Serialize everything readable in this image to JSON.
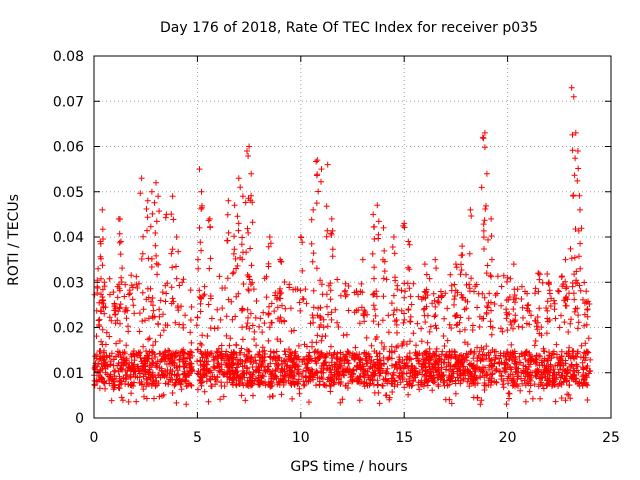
{
  "chart_data": {
    "type": "scatter",
    "title": "Day 176 of 2018, Rate Of TEC Index for receiver p035",
    "xlabel": "GPS time / hours",
    "ylabel": "ROTI / TECUs",
    "xlim": [
      0,
      25
    ],
    "ylim": [
      0,
      0.08
    ],
    "xticks": [
      0,
      5,
      10,
      15,
      20,
      25
    ],
    "xtick_labels": [
      "0",
      "5",
      "10",
      "15",
      "20",
      "25"
    ],
    "yticks": [
      0,
      0.01,
      0.02,
      0.03,
      0.04,
      0.05,
      0.06,
      0.07,
      0.08
    ],
    "ytick_labels": [
      "0",
      "0.01",
      "0.02",
      "0.03",
      "0.04",
      "0.05",
      "0.06",
      "0.07",
      "0.08"
    ],
    "grid": true,
    "marker": "+",
    "marker_color": "#ff0000",
    "series": [
      {
        "name": "ROTI",
        "description_x_range": [
          0,
          24
        ],
        "points": [
          [
            0.2,
            0.033
          ],
          [
            0.3,
            0.039
          ],
          [
            0.4,
            0.046
          ],
          [
            0.5,
            0.03
          ],
          [
            1.0,
            0.025
          ],
          [
            1.2,
            0.044
          ],
          [
            1.3,
            0.039
          ],
          [
            2.3,
            0.053
          ],
          [
            2.6,
            0.048
          ],
          [
            2.8,
            0.05
          ],
          [
            3.0,
            0.052
          ],
          [
            3.1,
            0.049
          ],
          [
            3.5,
            0.045
          ],
          [
            3.8,
            0.049
          ],
          [
            4.0,
            0.04
          ],
          [
            5.1,
            0.055
          ],
          [
            5.2,
            0.05
          ],
          [
            5.6,
            0.044
          ],
          [
            6.5,
            0.048
          ],
          [
            6.8,
            0.047
          ],
          [
            7.0,
            0.053
          ],
          [
            7.2,
            0.049
          ],
          [
            7.4,
            0.059
          ],
          [
            7.5,
            0.06
          ],
          [
            7.6,
            0.054
          ],
          [
            8.5,
            0.04
          ],
          [
            9.0,
            0.035
          ],
          [
            10.0,
            0.04
          ],
          [
            10.6,
            0.046
          ],
          [
            10.8,
            0.057
          ],
          [
            11.0,
            0.055
          ],
          [
            11.3,
            0.056
          ],
          [
            11.5,
            0.044
          ],
          [
            13.0,
            0.035
          ],
          [
            13.5,
            0.045
          ],
          [
            13.7,
            0.047
          ],
          [
            14.0,
            0.042
          ],
          [
            14.5,
            0.04
          ],
          [
            15.0,
            0.043
          ],
          [
            15.2,
            0.039
          ],
          [
            16.0,
            0.034
          ],
          [
            16.5,
            0.035
          ],
          [
            17.5,
            0.034
          ],
          [
            17.8,
            0.038
          ],
          [
            18.2,
            0.046
          ],
          [
            18.8,
            0.062
          ],
          [
            18.9,
            0.063
          ],
          [
            19.0,
            0.054
          ],
          [
            19.2,
            0.044
          ],
          [
            20.0,
            0.031
          ],
          [
            20.3,
            0.034
          ],
          [
            21.0,
            0.025
          ],
          [
            21.5,
            0.032
          ],
          [
            22.0,
            0.03
          ],
          [
            22.8,
            0.035
          ],
          [
            23.1,
            0.073
          ],
          [
            23.2,
            0.071
          ],
          [
            23.3,
            0.063
          ],
          [
            23.4,
            0.059
          ],
          [
            23.5,
            0.046
          ],
          [
            23.8,
            0.028
          ]
        ],
        "baseline_band": {
          "x_range": [
            0,
            24
          ],
          "y_min": 0.003,
          "y_typical_low": 0.007,
          "y_typical_high": 0.02
        }
      }
    ]
  }
}
